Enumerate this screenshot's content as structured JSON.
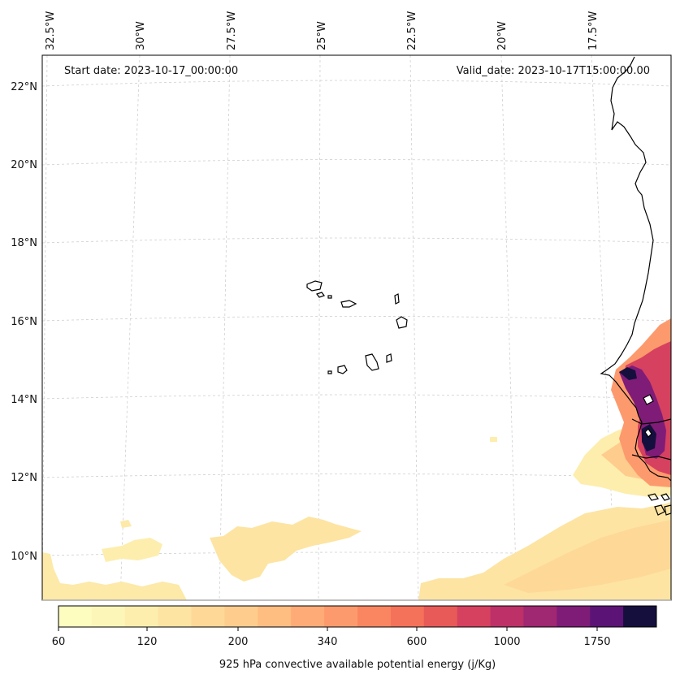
{
  "header": {
    "start_date": "Start date: 2023-10-17_00:00:00",
    "valid_date": "Valid_date: 2023-10-17T15:00:00.00"
  },
  "map": {
    "longitude_labels": [
      "32.5°W",
      "30°W",
      "27.5°W",
      "25°W",
      "22.5°W",
      "20°W",
      "17.5°W"
    ],
    "latitude_labels": [
      "22°N",
      "20°N",
      "18°N",
      "16°N",
      "14°N",
      "12°N",
      "10°N"
    ],
    "gridlines": true
  },
  "colorbar": {
    "label": "925 hPa convective available potential energy (j/Kg)",
    "ticks": [
      "60",
      "120",
      "200",
      "340",
      "600",
      "1000",
      "1750"
    ],
    "colors": [
      "#fcfdbf",
      "#fcf6b8",
      "#fdeeae",
      "#fde4a2",
      "#fed897",
      "#fecc8c",
      "#febd81",
      "#feab77",
      "#fd9a6d",
      "#fa8661",
      "#f47259",
      "#e85a58",
      "#d6415f",
      "#bd3168",
      "#a02771",
      "#7f1c78",
      "#5b1476",
      "#150f3d"
    ]
  }
}
